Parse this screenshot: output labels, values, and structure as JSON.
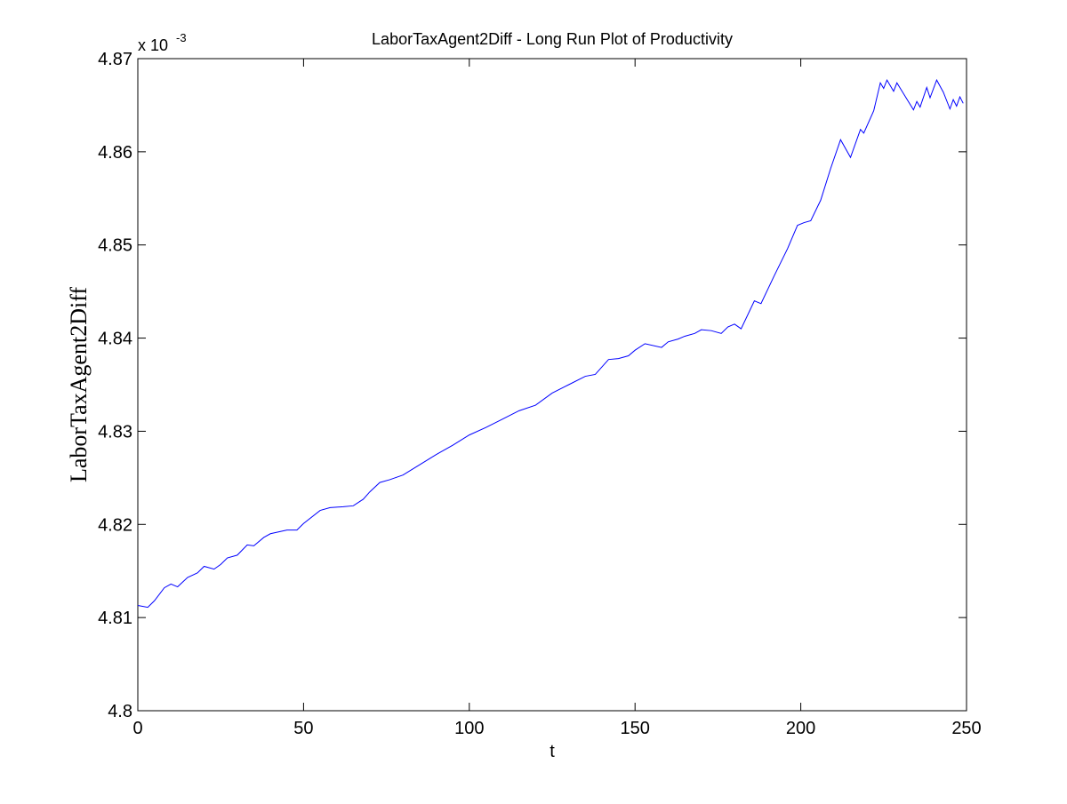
{
  "chart_data": {
    "type": "line",
    "title": "LaborTaxAgent2Diff - Long Run Plot of Productivity",
    "x_label": "t",
    "y_label": "LaborTaxAgent2Diff",
    "y_scale_label": {
      "base": "x 10",
      "exponent": "-3"
    },
    "xlim": [
      0,
      250
    ],
    "xticks": [
      0,
      50,
      100,
      150,
      200,
      250
    ],
    "ylim": [
      4.8,
      4.87
    ],
    "yticks": [
      4.8,
      4.81,
      4.82,
      4.83,
      4.84,
      4.85,
      4.86,
      4.87
    ],
    "grid": false,
    "series": [
      {
        "color": "#0000ff",
        "x": [
          0,
          3,
          5,
          8,
          10,
          12,
          15,
          18,
          20,
          23,
          25,
          27,
          30,
          33,
          35,
          38,
          40,
          45,
          48,
          50,
          55,
          58,
          62,
          65,
          68,
          70,
          73,
          76,
          80,
          85,
          90,
          95,
          100,
          105,
          110,
          115,
          120,
          125,
          130,
          135,
          138,
          142,
          145,
          148,
          150,
          153,
          158,
          160,
          163,
          165,
          168,
          170,
          173,
          176,
          178,
          180,
          182,
          186,
          188,
          192,
          196,
          199,
          201,
          203,
          206,
          209,
          212,
          215,
          218,
          219,
          222,
          224,
          225,
          226,
          228,
          229,
          234,
          235,
          236,
          238,
          239,
          241,
          243,
          245,
          246,
          247,
          248,
          249
        ],
        "values": [
          4.8113,
          4.8111,
          4.8118,
          4.8132,
          4.8136,
          4.8133,
          4.8143,
          4.8148,
          4.8155,
          4.8152,
          4.8157,
          4.8164,
          4.8167,
          4.8178,
          4.8177,
          4.8186,
          4.819,
          4.8194,
          4.8194,
          4.8201,
          4.8215,
          4.8218,
          4.8219,
          4.822,
          4.8227,
          4.8235,
          4.8245,
          4.8248,
          4.8253,
          4.8264,
          4.8275,
          4.8285,
          4.8296,
          4.8304,
          4.8313,
          4.8322,
          4.8328,
          4.8341,
          4.835,
          4.8359,
          4.8361,
          4.8377,
          4.8378,
          4.8381,
          4.8387,
          4.8394,
          4.839,
          4.8396,
          4.8399,
          4.8402,
          4.8405,
          4.8409,
          4.8408,
          4.8405,
          4.8412,
          4.8415,
          4.841,
          4.844,
          4.8437,
          4.8467,
          4.8496,
          4.8521,
          4.8524,
          4.8526,
          4.8548,
          4.8582,
          4.8613,
          4.8594,
          4.8624,
          4.862,
          4.8644,
          4.8674,
          4.8668,
          4.8677,
          4.8665,
          4.8674,
          4.8645,
          4.8654,
          4.8648,
          4.8669,
          4.8658,
          4.8677,
          4.8664,
          4.8646,
          4.8656,
          4.8649,
          4.8659,
          4.8652
        ]
      }
    ]
  }
}
